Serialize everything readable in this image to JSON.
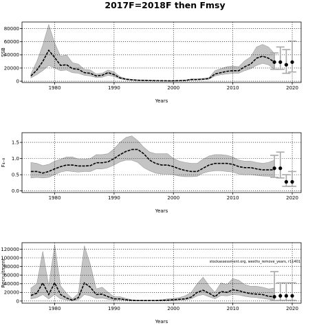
{
  "title": "2017F=2018F then Fmsy",
  "colors": {
    "band": "#c4c4c4",
    "band_edge": "#9a9a9a",
    "line": "#000000",
    "errorbar": "#a8a8a8",
    "grid": "#000000"
  },
  "chart_data": [
    {
      "type": "line",
      "ylabel": "SSB",
      "xlabel": "Years",
      "xlim": [
        1974.5,
        2021.5
      ],
      "ylim": [
        -2000,
        90000
      ],
      "xticks": [
        1980,
        1990,
        2000,
        2010,
        2020
      ],
      "xtick_labels": [
        "1980",
        "1990",
        "2000",
        "2010",
        "2020"
      ],
      "yticks": [
        0,
        20000,
        40000,
        60000,
        80000
      ],
      "ytick_labels": [
        "0",
        "20000",
        "40000",
        "60000",
        "80000"
      ],
      "grid": true,
      "annotation": "",
      "years": [
        1976,
        1977,
        1978,
        1979,
        1980,
        1981,
        1982,
        1983,
        1984,
        1985,
        1986,
        1987,
        1988,
        1989,
        1990,
        1991,
        1992,
        1993,
        1994,
        1995,
        1996,
        1997,
        1998,
        1999,
        2000,
        2001,
        2002,
        2003,
        2004,
        2005,
        2006,
        2007,
        2008,
        2009,
        2010,
        2011,
        2012,
        2013,
        2014,
        2015,
        2016,
        2017
      ],
      "median": [
        8000,
        17000,
        30000,
        47000,
        36000,
        24000,
        25000,
        19000,
        18000,
        13000,
        12000,
        8000,
        9000,
        13000,
        10000,
        5000,
        3000,
        2000,
        1500,
        1200,
        1000,
        800,
        700,
        600,
        600,
        800,
        1200,
        2500,
        2500,
        3000,
        4000,
        11000,
        13000,
        15000,
        16000,
        16000,
        22000,
        26000,
        35000,
        38000,
        35000,
        29000
      ],
      "lower": [
        5000,
        10000,
        16000,
        24000,
        20000,
        16000,
        17000,
        13000,
        12000,
        9000,
        8000,
        5500,
        6000,
        9000,
        7000,
        3500,
        2000,
        1300,
        1000,
        800,
        600,
        500,
        400,
        350,
        350,
        450,
        700,
        1600,
        1800,
        2200,
        3000,
        8000,
        10000,
        11000,
        12000,
        12000,
        16000,
        19000,
        24000,
        27000,
        25000,
        18000
      ],
      "upper": [
        11000,
        30000,
        55000,
        86000,
        58000,
        38000,
        40000,
        28000,
        26000,
        18000,
        17000,
        11000,
        12000,
        17000,
        14000,
        7000,
        4000,
        2800,
        2000,
        1600,
        1300,
        1100,
        1000,
        850,
        850,
        1100,
        1600,
        3500,
        3600,
        4200,
        5500,
        16000,
        19000,
        22000,
        23000,
        22000,
        31000,
        37000,
        52000,
        56000,
        52000,
        42000
      ],
      "projection": {
        "years": [
          2017,
          2018,
          2019,
          2020
        ],
        "values": [
          29000,
          29000,
          25000,
          29000
        ],
        "lower": [
          18000,
          18000,
          12000,
          14000
        ],
        "upper": [
          43000,
          52000,
          48000,
          61000
        ]
      }
    },
    {
      "type": "line",
      "ylabel": "F₄₋₈",
      "xlabel": "Years",
      "xlim": [
        1974.5,
        2021.5
      ],
      "ylim": [
        -0.05,
        1.8
      ],
      "xticks": [
        1980,
        1990,
        2000,
        2010,
        2020
      ],
      "xtick_labels": [
        "1980",
        "1990",
        "2000",
        "2010",
        "2020"
      ],
      "yticks": [
        0,
        0.5,
        1,
        1.5
      ],
      "ytick_labels": [
        "0.0",
        "0.5",
        "1.0",
        "1.5"
      ],
      "grid": true,
      "annotation": "",
      "years": [
        1976,
        1977,
        1978,
        1979,
        1980,
        1981,
        1982,
        1983,
        1984,
        1985,
        1986,
        1987,
        1988,
        1989,
        1990,
        1991,
        1992,
        1993,
        1994,
        1995,
        1996,
        1997,
        1998,
        1999,
        2000,
        2001,
        2002,
        2003,
        2004,
        2005,
        2006,
        2007,
        2008,
        2009,
        2010,
        2011,
        2012,
        2013,
        2014,
        2015,
        2016,
        2017
      ],
      "median": [
        0.6,
        0.6,
        0.55,
        0.6,
        0.68,
        0.75,
        0.8,
        0.8,
        0.77,
        0.77,
        0.78,
        0.87,
        0.87,
        0.9,
        1.0,
        1.12,
        1.22,
        1.28,
        1.28,
        1.15,
        0.95,
        0.85,
        0.8,
        0.8,
        0.75,
        0.68,
        0.63,
        0.6,
        0.6,
        0.7,
        0.8,
        0.85,
        0.85,
        0.85,
        0.82,
        0.75,
        0.72,
        0.72,
        0.68,
        0.65,
        0.65,
        0.65
      ],
      "lower": [
        0.4,
        0.42,
        0.4,
        0.42,
        0.5,
        0.58,
        0.62,
        0.6,
        0.58,
        0.6,
        0.6,
        0.68,
        0.68,
        0.72,
        0.8,
        0.9,
        0.95,
        0.95,
        0.88,
        0.72,
        0.62,
        0.55,
        0.52,
        0.52,
        0.5,
        0.46,
        0.44,
        0.44,
        0.45,
        0.55,
        0.6,
        0.62,
        0.62,
        0.6,
        0.58,
        0.52,
        0.5,
        0.5,
        0.48,
        0.46,
        0.45,
        0.42
      ],
      "upper": [
        0.88,
        0.85,
        0.78,
        0.82,
        0.92,
        0.98,
        1.05,
        1.05,
        0.98,
        0.98,
        1.0,
        1.12,
        1.12,
        1.15,
        1.3,
        1.5,
        1.65,
        1.7,
        1.55,
        1.35,
        1.2,
        1.15,
        1.15,
        1.15,
        1.0,
        0.92,
        0.88,
        0.85,
        0.85,
        0.98,
        1.08,
        1.12,
        1.12,
        1.1,
        1.05,
        0.95,
        0.92,
        0.92,
        0.88,
        0.85,
        0.88,
        0.95
      ],
      "projection": {
        "years": [
          2017,
          2018,
          2019,
          2020
        ],
        "values": [
          0.7,
          0.7,
          0.28,
          0.28
        ],
        "lower": [
          0.42,
          0.4,
          0.14,
          0.14
        ],
        "upper": [
          1.1,
          1.2,
          0.5,
          0.6
        ]
      }
    },
    {
      "type": "line",
      "ylabel": "Recruitment",
      "xlabel": "Years",
      "xlim": [
        1974.5,
        2021.5
      ],
      "ylim": [
        -5000,
        135000
      ],
      "xticks": [
        1980,
        1990,
        2000,
        2010,
        2020
      ],
      "xtick_labels": [
        "1980",
        "1990",
        "2000",
        "2010",
        "2020"
      ],
      "yticks": [
        0,
        20000,
        40000,
        60000,
        80000,
        100000,
        120000
      ],
      "ytick_labels": [
        "0",
        "20000",
        "40000",
        "60000",
        "80000",
        "100000",
        "120000"
      ],
      "grid": true,
      "annotation": "stockassessment.org, wesths_remove_years, r11401",
      "years": [
        1976,
        1977,
        1978,
        1979,
        1980,
        1981,
        1982,
        1983,
        1984,
        1985,
        1986,
        1987,
        1988,
        1989,
        1990,
        1991,
        1992,
        1993,
        1994,
        1995,
        1996,
        1997,
        1998,
        1999,
        2000,
        2001,
        2002,
        2003,
        2004,
        2005,
        2006,
        2007,
        2008,
        2009,
        2010,
        2011,
        2012,
        2013,
        2014,
        2015,
        2016,
        2017
      ],
      "median": [
        13000,
        18000,
        42000,
        15000,
        42000,
        15000,
        7000,
        2000,
        8000,
        42000,
        32000,
        15000,
        16000,
        10000,
        5000,
        5000,
        3000,
        1500,
        1000,
        1000,
        1000,
        1000,
        1500,
        2000,
        3000,
        4000,
        5000,
        9000,
        20000,
        25000,
        18000,
        10000,
        22000,
        20000,
        26000,
        24000,
        20000,
        17000,
        16000,
        15000,
        11000,
        10000
      ],
      "lower": [
        5000,
        8000,
        15000,
        5000,
        15000,
        5000,
        2500,
        800,
        3000,
        15000,
        12000,
        6000,
        7000,
        4000,
        2000,
        2000,
        1200,
        600,
        400,
        400,
        400,
        400,
        600,
        800,
        1200,
        1800,
        2500,
        5000,
        12000,
        15000,
        10000,
        5000,
        13000,
        12000,
        15000,
        14000,
        11000,
        9000,
        8000,
        6000,
        4000,
        2000
      ],
      "upper": [
        30000,
        40000,
        115000,
        35000,
        130000,
        35000,
        18000,
        5000,
        18000,
        128000,
        85000,
        28000,
        32000,
        20000,
        10000,
        10000,
        6000,
        3000,
        2000,
        2000,
        2000,
        2000,
        3000,
        5000,
        6000,
        8000,
        12000,
        20000,
        40000,
        55000,
        35000,
        20000,
        42000,
        38000,
        52000,
        48000,
        38000,
        34000,
        34000,
        32000,
        28000,
        30000
      ],
      "projection": {
        "years": [
          2017,
          2018,
          2019,
          2020
        ],
        "values": [
          10000,
          12000,
          12000,
          12000
        ],
        "lower": [
          1000,
          1500,
          1500,
          1500
        ],
        "upper": [
          68000,
          42000,
          42000,
          42000
        ]
      }
    }
  ]
}
